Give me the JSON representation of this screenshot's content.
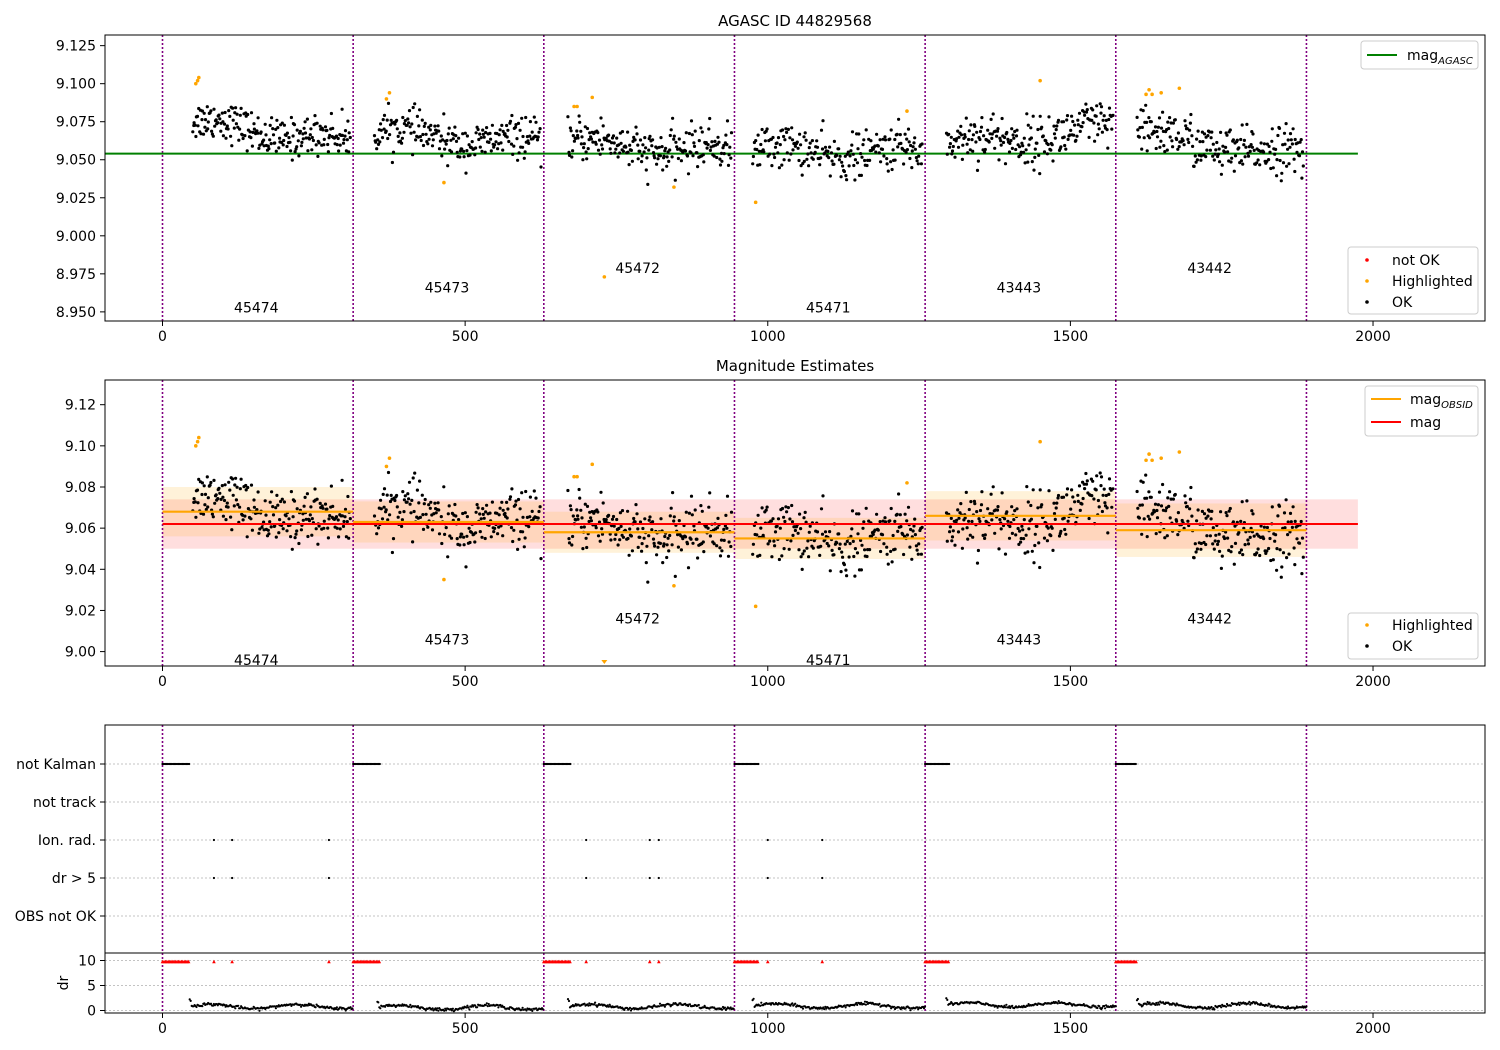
{
  "chart_data": [
    {
      "type": "scatter",
      "title": "AGASC ID 44829568",
      "xlim": [
        -95,
        2185
      ],
      "ylim": [
        8.944,
        9.132
      ],
      "xticks": [
        0,
        500,
        1000,
        1500,
        2000
      ],
      "yticks": [
        8.95,
        8.975,
        9.0,
        9.025,
        9.05,
        9.075,
        9.1,
        9.125
      ],
      "ytick_labels": [
        "8.950",
        "8.975",
        "9.000",
        "9.025",
        "9.050",
        "9.075",
        "9.100",
        "9.125"
      ],
      "obsid_boundaries": [
        0,
        315,
        630,
        945,
        1260,
        1575,
        1890
      ],
      "obsid_labels": [
        {
          "text": "45474",
          "x": 155,
          "y": 8.953
        },
        {
          "text": "45473",
          "x": 470,
          "y": 8.966
        },
        {
          "text": "45472",
          "x": 785,
          "y": 8.979
        },
        {
          "text": "45471",
          "x": 1100,
          "y": 8.953
        },
        {
          "text": "43443",
          "x": 1415,
          "y": 8.966
        },
        {
          "text": "43442",
          "x": 1730,
          "y": 8.979
        }
      ],
      "segments": [
        {
          "x0": 50,
          "x1": 310,
          "mean": 9.068,
          "trend": -0.014,
          "noise": 0.008
        },
        {
          "x0": 350,
          "x1": 625,
          "mean": 9.064,
          "trend": -0.008,
          "noise": 0.008
        },
        {
          "x0": 670,
          "x1": 940,
          "mean": 9.058,
          "trend": -0.006,
          "noise": 0.009
        },
        {
          "x0": 975,
          "x1": 1255,
          "mean": 9.055,
          "trend": -0.002,
          "noise": 0.009
        },
        {
          "x0": 1295,
          "x1": 1570,
          "mean": 9.065,
          "trend": 0.01,
          "noise": 0.01
        },
        {
          "x0": 1610,
          "x1": 1885,
          "mean": 9.059,
          "trend": -0.016,
          "noise": 0.01
        }
      ],
      "highlighted": [
        {
          "x": 55,
          "y": 9.1
        },
        {
          "x": 58,
          "y": 9.102
        },
        {
          "x": 60,
          "y": 9.104
        },
        {
          "x": 370,
          "y": 9.09
        },
        {
          "x": 375,
          "y": 9.094
        },
        {
          "x": 465,
          "y": 9.035
        },
        {
          "x": 680,
          "y": 9.085
        },
        {
          "x": 685,
          "y": 9.085
        },
        {
          "x": 710,
          "y": 9.091
        },
        {
          "x": 730,
          "y": 8.973
        },
        {
          "x": 845,
          "y": 9.032
        },
        {
          "x": 980,
          "y": 9.022
        },
        {
          "x": 1230,
          "y": 9.082
        },
        {
          "x": 1450,
          "y": 9.102
        },
        {
          "x": 1625,
          "y": 9.093
        },
        {
          "x": 1630,
          "y": 9.096
        },
        {
          "x": 1635,
          "y": 9.093
        },
        {
          "x": 1650,
          "y": 9.094
        },
        {
          "x": 1680,
          "y": 9.097
        }
      ],
      "lines": [
        {
          "name": "mag_AGASC",
          "y": 9.054,
          "x0": -95,
          "x1": 1975,
          "color": "#008000"
        }
      ],
      "legend_lines": [
        {
          "text": "mag",
          "sub": "AGASC",
          "color": "#008000"
        }
      ],
      "legend_points": [
        {
          "text": "not OK",
          "color": "#ff0000"
        },
        {
          "text": "Highlighted",
          "color": "#ffa500"
        },
        {
          "text": "OK",
          "color": "#000000"
        }
      ]
    },
    {
      "type": "scatter",
      "title": "Magnitude Estimates",
      "xlim": [
        -95,
        2185
      ],
      "ylim": [
        8.993,
        9.132
      ],
      "xticks": [
        0,
        500,
        1000,
        1500,
        2000
      ],
      "yticks": [
        9.0,
        9.02,
        9.04,
        9.06,
        9.08,
        9.1,
        9.12
      ],
      "ytick_labels": [
        "9.00",
        "9.02",
        "9.04",
        "9.06",
        "9.08",
        "9.10",
        "9.12"
      ],
      "obsid_boundaries": [
        0,
        315,
        630,
        945,
        1260,
        1575,
        1890
      ],
      "obsid_labels": [
        {
          "text": "45474",
          "x": 155,
          "y": 8.996
        },
        {
          "text": "45473",
          "x": 470,
          "y": 9.006
        },
        {
          "text": "45472",
          "x": 785,
          "y": 9.016
        },
        {
          "text": "45471",
          "x": 1100,
          "y": 8.996
        },
        {
          "text": "43443",
          "x": 1415,
          "y": 9.006
        },
        {
          "text": "43442",
          "x": 1730,
          "y": 9.016
        }
      ],
      "obsid_means": [
        {
          "x0": 0,
          "x1": 315,
          "y": 9.068,
          "err": 0.012
        },
        {
          "x0": 315,
          "x1": 630,
          "y": 9.063,
          "err": 0.01
        },
        {
          "x0": 630,
          "x1": 945,
          "y": 9.058,
          "err": 0.01
        },
        {
          "x0": 945,
          "x1": 1260,
          "y": 9.055,
          "err": 0.01
        },
        {
          "x0": 1260,
          "x1": 1575,
          "y": 9.066,
          "err": 0.012
        },
        {
          "x0": 1575,
          "x1": 1890,
          "y": 9.059,
          "err": 0.013
        }
      ],
      "overall_mag": {
        "y": 9.062,
        "err": 0.012,
        "x0": 0,
        "x1": 1975
      },
      "legend_lines": [
        {
          "text": "mag",
          "sub": "OBSID",
          "color": "#ffa500"
        },
        {
          "text": "mag",
          "sub": "",
          "color": "#ff0000"
        }
      ],
      "legend_points": [
        {
          "text": "Highlighted",
          "color": "#ffa500"
        },
        {
          "text": "OK",
          "color": "#000000"
        }
      ]
    },
    {
      "type": "scatter",
      "xlim": [
        -95,
        2185
      ],
      "flag_rows": [
        "not Kalman",
        "not track",
        "Ion. rad.",
        "dr > 5",
        "OBS not OK"
      ],
      "not_kalman_ranges": [
        [
          0,
          45
        ],
        [
          315,
          360
        ],
        [
          630,
          675
        ],
        [
          945,
          985
        ],
        [
          1260,
          1300
        ],
        [
          1575,
          1610
        ]
      ],
      "ion_rad_x": [
        85,
        115,
        275,
        700,
        805,
        820,
        1000,
        1090
      ],
      "dr_gt5_x": [
        85,
        115,
        275,
        700,
        805,
        820,
        1000,
        1090
      ],
      "dr_panel": {
        "ylabel": "dr",
        "ylim": [
          -0.5,
          11.5
        ],
        "yticks": [
          0,
          5,
          10
        ],
        "xticks": [
          0,
          500,
          1000,
          1500,
          2000
        ],
        "segments": [
          {
            "x0": 45,
            "x1": 315,
            "base": 0.8
          },
          {
            "x0": 355,
            "x1": 630,
            "base": 0.6
          },
          {
            "x0": 670,
            "x1": 945,
            "base": 0.8
          },
          {
            "x0": 975,
            "x1": 1260,
            "base": 0.9
          },
          {
            "x0": 1295,
            "x1": 1575,
            "base": 1.1
          },
          {
            "x0": 1610,
            "x1": 1890,
            "base": 1.0
          }
        ],
        "limit_markers_y": 9.8
      }
    }
  ]
}
